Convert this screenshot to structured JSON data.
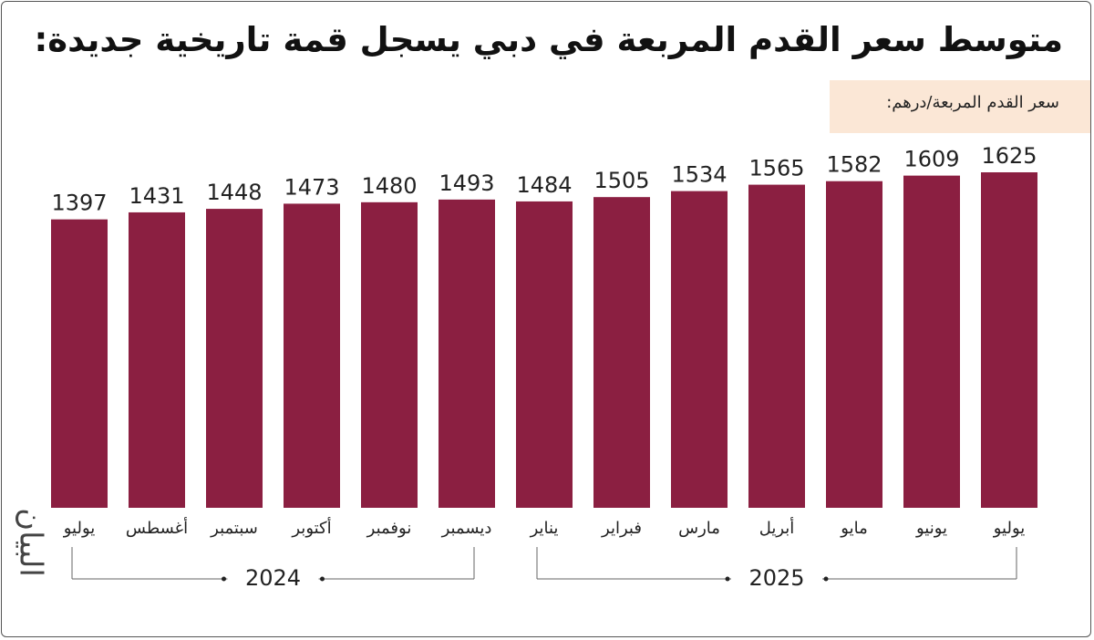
{
  "chart_data": {
    "type": "bar",
    "title": "متوسط سعر القدم المربعة في دبي يسجل قمة تاريخية جديدة:",
    "subtitle": "سعر القدم المربعة/درهم:",
    "logo": "البيان",
    "categories": [
      "يوليو",
      "أغسطس",
      "سبتمبر",
      "أكتوبر",
      "نوفمبر",
      "ديسمبر",
      "يناير",
      "فبراير",
      "مارس",
      "أبريل",
      "مايو",
      "يونيو",
      "يوليو"
    ],
    "values": [
      1397,
      1431,
      1448,
      1473,
      1480,
      1493,
      1484,
      1505,
      1534,
      1565,
      1582,
      1609,
      1625
    ],
    "years": [
      "2024",
      "2025"
    ],
    "color": "#8b1f41"
  }
}
